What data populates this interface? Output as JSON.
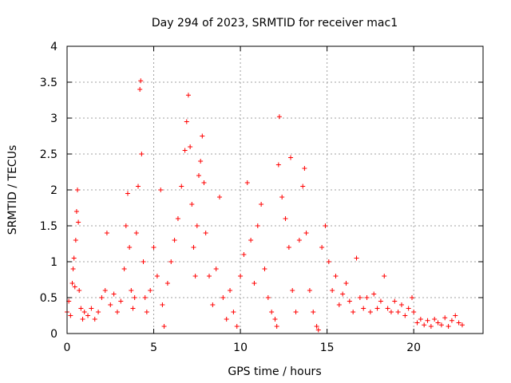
{
  "chart_data": {
    "type": "scatter",
    "title": "Day 294 of 2023, SRMTID for receiver mac1",
    "xlabel": "GPS time / hours",
    "ylabel": "SRMTID / TECUs",
    "xlim": [
      0,
      24
    ],
    "ylim": [
      0,
      4
    ],
    "xticks": [
      "0",
      "5",
      "10",
      "15",
      "20"
    ],
    "yticks": [
      "0",
      "0.5",
      "1",
      "1.5",
      "2",
      "2.5",
      "3",
      "3.5",
      "4"
    ],
    "grid": true,
    "marker": "plus",
    "marker_color": "#ff0000",
    "series": [
      {
        "values_xy": [
          [
            0.0,
            0.3
          ],
          [
            0.1,
            0.45
          ],
          [
            0.2,
            0.25
          ],
          [
            0.3,
            0.7
          ],
          [
            0.35,
            0.9
          ],
          [
            0.4,
            1.05
          ],
          [
            0.45,
            0.65
          ],
          [
            0.5,
            1.3
          ],
          [
            0.55,
            1.7
          ],
          [
            0.6,
            2.0
          ],
          [
            0.65,
            1.55
          ],
          [
            0.7,
            0.6
          ],
          [
            0.8,
            0.35
          ],
          [
            0.9,
            0.2
          ],
          [
            1.0,
            0.3
          ],
          [
            1.2,
            0.25
          ],
          [
            1.4,
            0.35
          ],
          [
            1.6,
            0.2
          ],
          [
            1.8,
            0.3
          ],
          [
            2.0,
            0.5
          ],
          [
            2.2,
            0.6
          ],
          [
            2.3,
            1.4
          ],
          [
            2.5,
            0.4
          ],
          [
            2.7,
            0.55
          ],
          [
            2.9,
            0.3
          ],
          [
            3.1,
            0.45
          ],
          [
            3.3,
            0.9
          ],
          [
            3.4,
            1.5
          ],
          [
            3.5,
            1.95
          ],
          [
            3.6,
            1.2
          ],
          [
            3.7,
            0.6
          ],
          [
            3.8,
            0.35
          ],
          [
            3.9,
            0.5
          ],
          [
            4.0,
            1.4
          ],
          [
            4.1,
            2.05
          ],
          [
            4.2,
            3.4
          ],
          [
            4.25,
            3.52
          ],
          [
            4.3,
            2.5
          ],
          [
            4.4,
            1.0
          ],
          [
            4.5,
            0.5
          ],
          [
            4.6,
            0.3
          ],
          [
            4.8,
            0.6
          ],
          [
            5.0,
            1.2
          ],
          [
            5.2,
            0.8
          ],
          [
            5.4,
            2.0
          ],
          [
            5.5,
            0.4
          ],
          [
            5.6,
            0.1
          ],
          [
            5.8,
            0.7
          ],
          [
            6.0,
            1.0
          ],
          [
            6.2,
            1.3
          ],
          [
            6.4,
            1.6
          ],
          [
            6.6,
            2.05
          ],
          [
            6.8,
            2.55
          ],
          [
            6.9,
            2.95
          ],
          [
            7.0,
            3.32
          ],
          [
            7.1,
            2.6
          ],
          [
            7.2,
            1.8
          ],
          [
            7.3,
            1.2
          ],
          [
            7.4,
            0.8
          ],
          [
            7.5,
            1.5
          ],
          [
            7.6,
            2.2
          ],
          [
            7.7,
            2.4
          ],
          [
            7.8,
            2.75
          ],
          [
            7.9,
            2.1
          ],
          [
            8.0,
            1.4
          ],
          [
            8.2,
            0.8
          ],
          [
            8.4,
            0.4
          ],
          [
            8.6,
            0.9
          ],
          [
            8.8,
            1.9
          ],
          [
            9.0,
            0.5
          ],
          [
            9.2,
            0.2
          ],
          [
            9.4,
            0.6
          ],
          [
            9.6,
            0.3
          ],
          [
            9.8,
            0.1
          ],
          [
            10.0,
            0.8
          ],
          [
            10.2,
            1.1
          ],
          [
            10.4,
            2.1
          ],
          [
            10.6,
            1.3
          ],
          [
            10.8,
            0.7
          ],
          [
            11.0,
            1.5
          ],
          [
            11.2,
            1.8
          ],
          [
            11.4,
            0.9
          ],
          [
            11.6,
            0.5
          ],
          [
            11.8,
            0.3
          ],
          [
            12.0,
            0.2
          ],
          [
            12.1,
            0.1
          ],
          [
            12.2,
            2.35
          ],
          [
            12.25,
            3.02
          ],
          [
            12.4,
            1.9
          ],
          [
            12.6,
            1.6
          ],
          [
            12.8,
            1.2
          ],
          [
            12.9,
            2.45
          ],
          [
            13.0,
            0.6
          ],
          [
            13.2,
            0.3
          ],
          [
            13.4,
            1.3
          ],
          [
            13.6,
            2.05
          ],
          [
            13.7,
            2.3
          ],
          [
            13.8,
            1.4
          ],
          [
            14.0,
            0.6
          ],
          [
            14.2,
            0.3
          ],
          [
            14.4,
            0.1
          ],
          [
            14.5,
            0.05
          ],
          [
            14.7,
            1.2
          ],
          [
            14.9,
            1.5
          ],
          [
            15.1,
            1.0
          ],
          [
            15.3,
            0.6
          ],
          [
            15.5,
            0.8
          ],
          [
            15.7,
            0.4
          ],
          [
            15.9,
            0.55
          ],
          [
            16.1,
            0.7
          ],
          [
            16.3,
            0.45
          ],
          [
            16.5,
            0.3
          ],
          [
            16.7,
            1.05
          ],
          [
            16.9,
            0.5
          ],
          [
            17.1,
            0.35
          ],
          [
            17.3,
            0.5
          ],
          [
            17.5,
            0.3
          ],
          [
            17.7,
            0.55
          ],
          [
            17.9,
            0.35
          ],
          [
            18.1,
            0.45
          ],
          [
            18.3,
            0.8
          ],
          [
            18.5,
            0.35
          ],
          [
            18.7,
            0.3
          ],
          [
            18.9,
            0.45
          ],
          [
            19.1,
            0.3
          ],
          [
            19.3,
            0.4
          ],
          [
            19.5,
            0.25
          ],
          [
            19.7,
            0.35
          ],
          [
            19.9,
            0.5
          ],
          [
            20.0,
            0.3
          ],
          [
            20.2,
            0.15
          ],
          [
            20.4,
            0.2
          ],
          [
            20.6,
            0.12
          ],
          [
            20.8,
            0.18
          ],
          [
            21.0,
            0.1
          ],
          [
            21.2,
            0.2
          ],
          [
            21.4,
            0.15
          ],
          [
            21.6,
            0.12
          ],
          [
            21.8,
            0.22
          ],
          [
            22.0,
            0.1
          ],
          [
            22.2,
            0.18
          ],
          [
            22.4,
            0.25
          ],
          [
            22.6,
            0.15
          ],
          [
            22.8,
            0.12
          ]
        ]
      }
    ]
  }
}
